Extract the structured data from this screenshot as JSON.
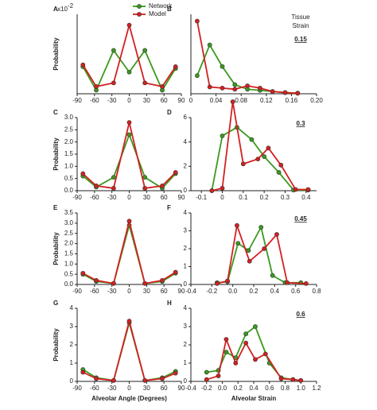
{
  "chart_data": [
    {
      "type": "line",
      "panel": "A",
      "ylabel": "Probability",
      "axis_multiplier": "x10",
      "axis_multiplier_exp": "-2",
      "legend": true,
      "xlim": [
        -90,
        90
      ],
      "xticks": [
        -90,
        -60,
        -30,
        0,
        30,
        60,
        90
      ],
      "ylim": [
        0,
        2.2
      ],
      "series": [
        {
          "name": "Network",
          "color": "#3a9a1e",
          "x": [
            -80,
            -57,
            -27,
            0,
            27,
            57,
            80
          ],
          "values": [
            0.75,
            0.1,
            1.2,
            0.6,
            1.2,
            0.1,
            0.7
          ]
        },
        {
          "name": "Model",
          "color": "#d42020",
          "x": [
            -80,
            -57,
            -27,
            0,
            27,
            57,
            80
          ],
          "values": [
            0.8,
            0.2,
            0.3,
            1.9,
            0.3,
            0.2,
            0.75
          ]
        }
      ]
    },
    {
      "type": "line",
      "panel": "B",
      "annotations": [
        "Tissue",
        "Strain",
        "0.15"
      ],
      "xlim": [
        0,
        0.2
      ],
      "xticks": [
        0,
        0.04,
        0.08,
        0.12,
        0.16,
        {
          "value": 0.2,
          "label": "0.20"
        }
      ],
      "ylim": [
        0,
        35
      ],
      "series": [
        {
          "color": "#3a9a1e",
          "x": [
            0.01,
            0.03,
            0.05,
            0.07,
            0.09,
            0.11,
            0.13,
            0.15,
            0.17
          ],
          "values": [
            8,
            21.5,
            12,
            4,
            2,
            1.5,
            1,
            0.5,
            0.3
          ]
        },
        {
          "color": "#d42020",
          "x": [
            0.01,
            0.03,
            0.05,
            0.07,
            0.09,
            0.11,
            0.13,
            0.15,
            0.17
          ],
          "values": [
            32,
            3,
            2.5,
            2,
            3.5,
            2.5,
            1,
            0.5,
            0.2
          ]
        }
      ]
    },
    {
      "type": "line",
      "panel": "C",
      "ylabel": "Probability",
      "xlim": [
        -90,
        90
      ],
      "xticks": [
        -90,
        -60,
        -30,
        0,
        30,
        60,
        90
      ],
      "ylim": [
        0,
        3
      ],
      "yticks": [
        {
          "value": 0,
          "label": "0.0"
        },
        0.5,
        {
          "value": 1,
          "label": "1.0"
        },
        1.5,
        {
          "value": 2,
          "label": "2.0"
        },
        2.5,
        {
          "value": 3,
          "label": "3.0"
        }
      ],
      "series": [
        {
          "color": "#3a9a1e",
          "x": [
            -80,
            -57,
            -27,
            0,
            27,
            57,
            80
          ],
          "values": [
            0.6,
            0.15,
            0.55,
            2.3,
            0.55,
            0.1,
            0.7
          ]
        },
        {
          "color": "#d42020",
          "x": [
            -80,
            -57,
            -27,
            0,
            27,
            57,
            80
          ],
          "values": [
            0.7,
            0.2,
            0.1,
            2.8,
            0.1,
            0.2,
            0.75
          ]
        }
      ]
    },
    {
      "type": "line",
      "panel": "D",
      "annotations": [
        "0.3"
      ],
      "xlim": [
        -0.15,
        0.45
      ],
      "xticks": [
        -0.1,
        0,
        0.1,
        0.2,
        0.3,
        0.4
      ],
      "ylim": [
        0,
        6
      ],
      "yticks": [
        0,
        2,
        4,
        6
      ],
      "series": [
        {
          "color": "#3a9a1e",
          "x": [
            -0.05,
            0,
            0.07,
            0.14,
            0.2,
            0.27,
            0.34,
            0.41
          ],
          "values": [
            0,
            4.5,
            5.2,
            4.2,
            2.8,
            1.5,
            0.05,
            0.05
          ]
        },
        {
          "color": "#d42020",
          "x": [
            -0.05,
            0,
            0.05,
            0.1,
            0.17,
            0.22,
            0.28,
            0.35,
            0.41
          ],
          "values": [
            0,
            0.2,
            7.3,
            2.2,
            2.6,
            3.5,
            2.1,
            0.1,
            0.1
          ]
        }
      ]
    },
    {
      "type": "line",
      "panel": "E",
      "ylabel": "Probability",
      "xlim": [
        -90,
        90
      ],
      "xticks": [
        -90,
        -60,
        -30,
        0,
        30,
        60,
        90
      ],
      "ylim": [
        0,
        3.5
      ],
      "yticks": [
        {
          "value": 0,
          "label": "0.0"
        },
        0.5,
        {
          "value": 1,
          "label": "1.0"
        },
        1.5,
        {
          "value": 2,
          "label": "2.0"
        },
        2.5,
        {
          "value": 3,
          "label": "3.0"
        },
        3.5
      ],
      "series": [
        {
          "color": "#3a9a1e",
          "x": [
            -80,
            -57,
            -27,
            0,
            27,
            57,
            80
          ],
          "values": [
            0.5,
            0.15,
            0.05,
            2.9,
            0.05,
            0.15,
            0.55
          ]
        },
        {
          "color": "#d42020",
          "x": [
            -80,
            -57,
            -27,
            0,
            27,
            57,
            80
          ],
          "values": [
            0.55,
            0.2,
            0.05,
            3.1,
            0.05,
            0.2,
            0.6
          ]
        }
      ]
    },
    {
      "type": "line",
      "panel": "F",
      "annotations": [
        "0.45"
      ],
      "xlim": [
        -0.4,
        0.8
      ],
      "xticks": [
        -0.4,
        -0.2,
        {
          "value": 0,
          "label": "0.0"
        },
        0.2,
        0.4,
        0.6,
        0.8
      ],
      "ylim": [
        0,
        4
      ],
      "yticks": [
        0,
        1,
        2,
        3,
        4
      ],
      "series": [
        {
          "color": "#3a9a1e",
          "x": [
            -0.15,
            -0.05,
            0.05,
            0.15,
            0.27,
            0.38,
            0.5,
            0.65
          ],
          "values": [
            0.1,
            0.15,
            2.3,
            1.9,
            3.2,
            0.5,
            0.1,
            0.1
          ]
        },
        {
          "color": "#d42020",
          "x": [
            -0.15,
            -0.05,
            0.04,
            0.16,
            0.3,
            0.42,
            0.52,
            0.7
          ],
          "values": [
            0.05,
            0.2,
            3.3,
            1.3,
            2.0,
            2.8,
            0.1,
            0.05
          ]
        }
      ]
    },
    {
      "type": "line",
      "panel": "G",
      "ylabel": "Probability",
      "xlabel": "Alveolar Angle (Degrees)",
      "xlim": [
        -90,
        90
      ],
      "xticks": [
        -90,
        -60,
        -30,
        0,
        30,
        60,
        90
      ],
      "ylim": [
        0,
        4
      ],
      "yticks": [
        0,
        1,
        2,
        3,
        4
      ],
      "series": [
        {
          "color": "#3a9a1e",
          "x": [
            -80,
            -57,
            -27,
            0,
            27,
            57,
            80
          ],
          "values": [
            0.65,
            0.2,
            0.05,
            3.2,
            0.05,
            0.2,
            0.55
          ]
        },
        {
          "color": "#d42020",
          "x": [
            -80,
            -57,
            -27,
            0,
            27,
            57,
            80
          ],
          "values": [
            0.5,
            0.15,
            0.05,
            3.3,
            0.05,
            0.15,
            0.45
          ]
        }
      ]
    },
    {
      "type": "line",
      "panel": "H",
      "annotations": [
        "0.6"
      ],
      "xlabel": "Alveolar Strain",
      "xlim": [
        -0.4,
        1.2
      ],
      "xticks": [
        -0.4,
        -0.2,
        {
          "value": 0,
          "label": "0.0"
        },
        0.2,
        0.4,
        0.6,
        0.8,
        {
          "value": 1,
          "label": "1.0"
        },
        1.2
      ],
      "ylim": [
        0,
        4
      ],
      "yticks": [
        0,
        1,
        2,
        3,
        4
      ],
      "series": [
        {
          "color": "#3a9a1e",
          "x": [
            -0.2,
            -0.05,
            0.05,
            0.17,
            0.3,
            0.42,
            0.6,
            0.75,
            0.9,
            1.0
          ],
          "values": [
            0.5,
            0.6,
            1.6,
            1.3,
            2.6,
            3.0,
            1.0,
            0.2,
            0.1,
            0.05
          ]
        },
        {
          "color": "#d42020",
          "x": [
            -0.2,
            -0.05,
            0.05,
            0.17,
            0.3,
            0.42,
            0.55,
            0.75,
            0.9,
            1.0
          ],
          "values": [
            0.1,
            0.3,
            2.3,
            1.0,
            2.1,
            1.2,
            1.5,
            0.15,
            0.1,
            0.05
          ]
        }
      ]
    }
  ]
}
